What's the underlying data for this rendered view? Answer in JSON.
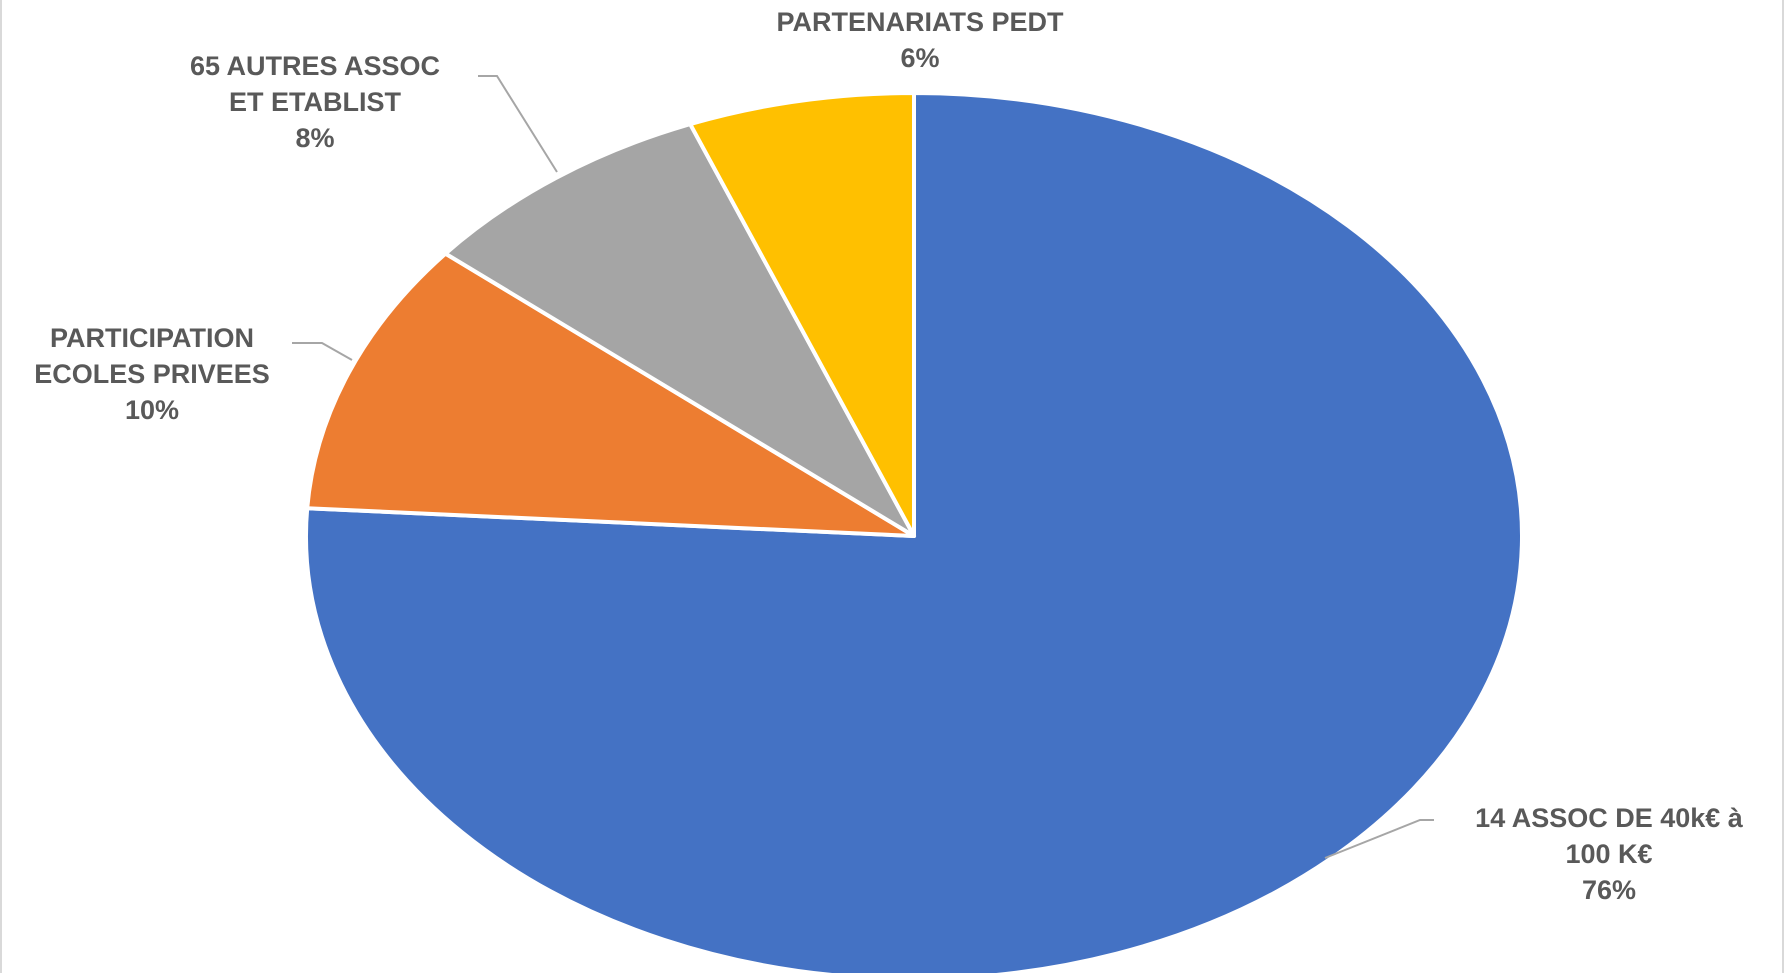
{
  "chart_data": {
    "type": "pie",
    "title": "",
    "start_angle_deg": 0,
    "direction": "clockwise",
    "slices": [
      {
        "key": "assoc14",
        "name_lines": [
          "14 ASSOC DE 40k€ à",
          "100 K€"
        ],
        "percent_label": "76%",
        "value": 76,
        "color": "#4472c4"
      },
      {
        "key": "ecoles",
        "name_lines": [
          "PARTICIPATION",
          "ECOLES PRIVEES"
        ],
        "percent_label": "10%",
        "value": 10,
        "color": "#ed7d31"
      },
      {
        "key": "autres",
        "name_lines": [
          "65 AUTRES ASSOC",
          "ET ETABLIST"
        ],
        "percent_label": "8%",
        "value": 8,
        "color": "#a5a5a5"
      },
      {
        "key": "pedt",
        "name_lines": [
          "PARTENARIATS PEDT"
        ],
        "percent_label": "6%",
        "value": 6,
        "color": "#ffc000"
      }
    ]
  }
}
